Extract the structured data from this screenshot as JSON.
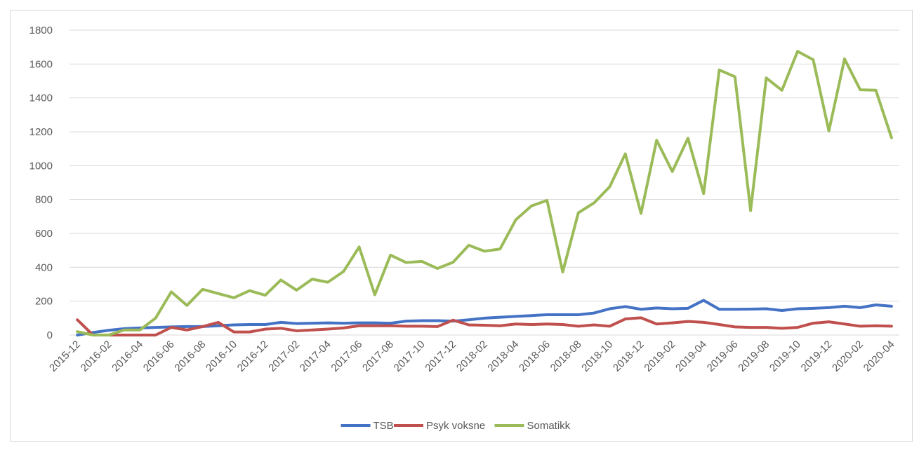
{
  "chart_data": {
    "type": "line",
    "categories": [
      "2015-12",
      null,
      "2016-02",
      null,
      "2016-04",
      null,
      "2016-06",
      null,
      "2016-08",
      null,
      "2016-10",
      null,
      "2016-12",
      null,
      "2017-02",
      null,
      "2017-04",
      null,
      "2017-06",
      null,
      "2017-08",
      null,
      "2017-10",
      null,
      "2017-12",
      null,
      "2018-02",
      null,
      "2018-04",
      null,
      "2018-06",
      null,
      "2018-08",
      null,
      "2018-10",
      null,
      "2018-12",
      null,
      "2019-02",
      null,
      "2019-04",
      null,
      "2019-06",
      null,
      "2019-08",
      null,
      "2019-10",
      null,
      "2019-12",
      null,
      "2020-02",
      null,
      "2020-04"
    ],
    "series": [
      {
        "name": "TSB",
        "color": "#4472c4",
        "values": [
          0,
          15,
          28,
          38,
          42,
          45,
          48,
          50,
          50,
          55,
          60,
          62,
          62,
          75,
          68,
          70,
          72,
          70,
          72,
          72,
          70,
          82,
          85,
          85,
          82,
          90,
          100,
          105,
          110,
          115,
          120,
          120,
          120,
          130,
          155,
          168,
          152,
          160,
          155,
          158,
          205,
          152,
          152,
          153,
          155,
          145,
          155,
          158,
          162,
          170,
          162,
          178,
          170
        ]
      },
      {
        "name": "Psyk voksne",
        "color": "#c0504d",
        "values": [
          90,
          0,
          0,
          0,
          0,
          0,
          45,
          30,
          50,
          75,
          18,
          18,
          35,
          40,
          25,
          30,
          35,
          42,
          55,
          55,
          55,
          52,
          52,
          50,
          88,
          60,
          58,
          55,
          65,
          62,
          65,
          62,
          52,
          60,
          52,
          95,
          102,
          65,
          72,
          80,
          75,
          62,
          48,
          45,
          45,
          40,
          45,
          70,
          78,
          65,
          52,
          55,
          52
        ]
      },
      {
        "name": "Somatikk",
        "color": "#9bbb59",
        "values": [
          20,
          0,
          0,
          30,
          30,
          100,
          255,
          175,
          270,
          245,
          220,
          262,
          235,
          325,
          265,
          330,
          312,
          375,
          520,
          238,
          472,
          428,
          435,
          393,
          430,
          530,
          495,
          508,
          680,
          762,
          795,
          372,
          722,
          780,
          875,
          1070,
          718,
          1150,
          965,
          1162,
          835,
          1565,
          1525,
          735,
          1518,
          1445,
          1675,
          1625,
          1205,
          1630,
          1448,
          1445,
          1165
        ]
      }
    ],
    "ylim": [
      0,
      1800
    ],
    "yticks": [
      0,
      200,
      400,
      600,
      800,
      1000,
      1200,
      1400,
      1600,
      1800
    ],
    "grid": true,
    "legend": "bottom"
  }
}
